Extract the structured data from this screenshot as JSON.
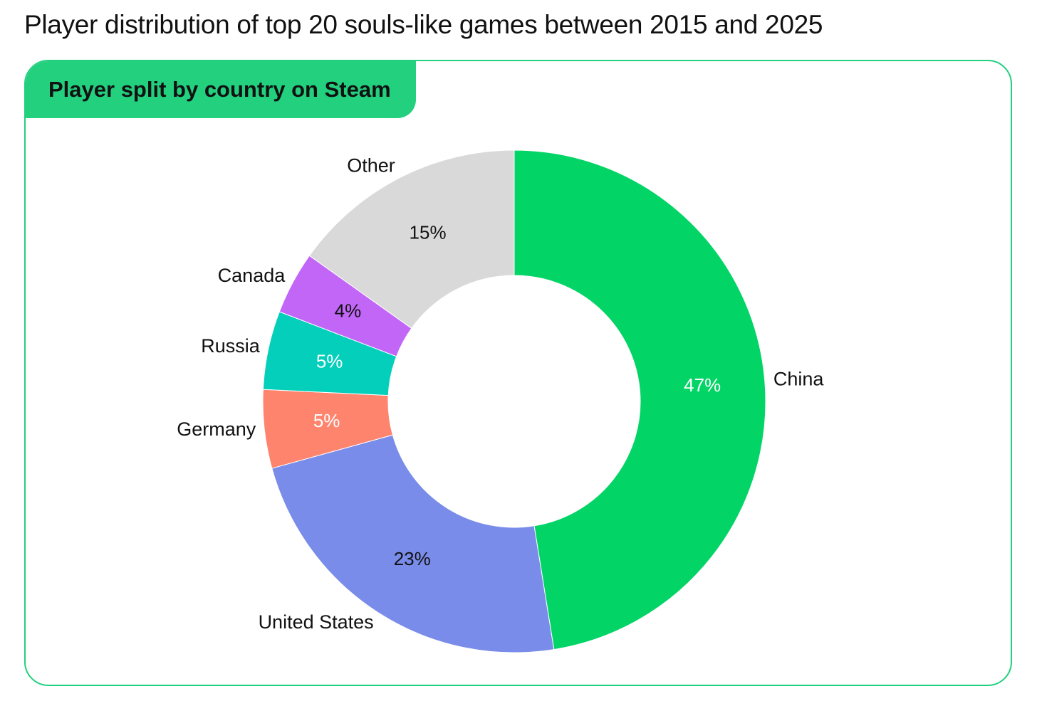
{
  "page": {
    "title": "Player distribution of top 20 souls-like games between 2015 and 2025"
  },
  "card": {
    "tab_label": "Player split by country on Steam"
  },
  "chart_data": {
    "type": "pie",
    "style": "donut",
    "title": "Player split by country on Steam",
    "start": "top, clockwise",
    "series": [
      {
        "name": "China",
        "value": 47,
        "label": "47%",
        "color": "#03d466",
        "label_color": "#ffffff"
      },
      {
        "name": "United States",
        "value": 23,
        "label": "23%",
        "color": "#7a8ce9",
        "label_color": "#111111"
      },
      {
        "name": "Germany",
        "value": 5,
        "label": "5%",
        "color": "#fe846e",
        "label_color": "#ffffff"
      },
      {
        "name": "Russia",
        "value": 5,
        "label": "5%",
        "color": "#03cfbb",
        "label_color": "#ffffff"
      },
      {
        "name": "Canada",
        "value": 4,
        "label": "4%",
        "color": "#c266f8",
        "label_color": "#111111"
      },
      {
        "name": "Other",
        "value": 15,
        "label": "15%",
        "color": "#d9d9d9",
        "label_color": "#111111"
      }
    ]
  }
}
